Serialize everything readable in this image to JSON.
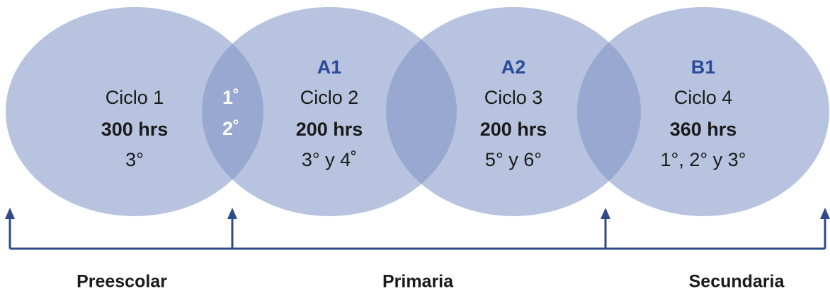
{
  "circles": [
    {
      "level": null,
      "name": "Ciclo 1",
      "hours": "300 hrs",
      "grades": "3°"
    },
    {
      "level": "A1",
      "name": "Ciclo 2",
      "hours": "200 hrs",
      "grades": "3° y 4˚"
    },
    {
      "level": "A2",
      "name": "Ciclo 3",
      "hours": "200 hrs",
      "grades": "5° y 6°"
    },
    {
      "level": "B1",
      "name": "Ciclo 4",
      "hours": "360 hrs",
      "grades": "1°, 2° y 3°"
    }
  ],
  "overlap": [
    "1˚",
    "2˚"
  ],
  "stages": [
    "Preescolar",
    "Primaria",
    "Secundaria"
  ]
}
